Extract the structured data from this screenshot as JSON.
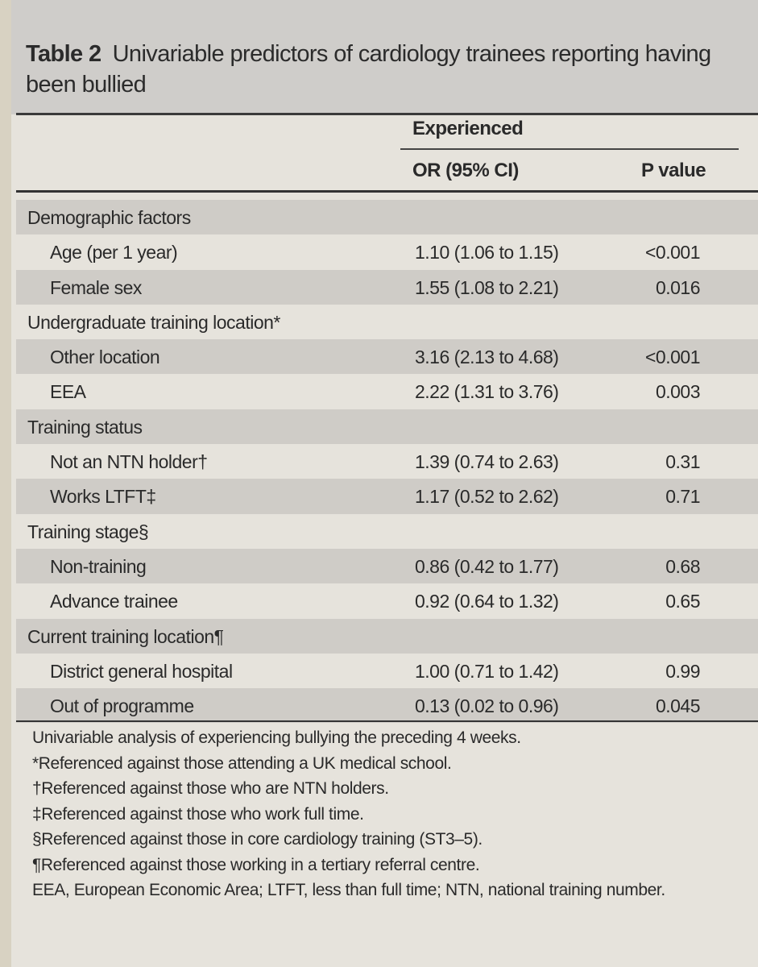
{
  "table": {
    "label": "Table 2",
    "title": "Univariable predictors of cardiology trainees reporting having been bullied",
    "group_header": "Experienced",
    "col_or": "OR (95% CI)",
    "col_p": "P value",
    "rows": [
      {
        "label": "Demographic factors",
        "or": "",
        "p": "",
        "type": "section"
      },
      {
        "label": "Age (per 1 year)",
        "or": "1.10 (1.06 to 1.15)",
        "p": "<0.001",
        "type": "sub"
      },
      {
        "label": "Female sex",
        "or": "1.55 (1.08 to 2.21)",
        "p": "0.016",
        "type": "sub"
      },
      {
        "label": "Undergraduate training location*",
        "or": "",
        "p": "",
        "type": "section"
      },
      {
        "label": "Other location",
        "or": "3.16 (2.13 to 4.68)",
        "p": "<0.001",
        "type": "sub"
      },
      {
        "label": "EEA",
        "or": "2.22 (1.31 to 3.76)",
        "p": "0.003",
        "type": "sub"
      },
      {
        "label": "Training status",
        "or": "",
        "p": "",
        "type": "section"
      },
      {
        "label": "Not an NTN holder†",
        "or": "1.39 (0.74 to 2.63)",
        "p": "0.31",
        "type": "sub"
      },
      {
        "label": "Works LTFT‡",
        "or": "1.17 (0.52 to 2.62)",
        "p": "0.71",
        "type": "sub"
      },
      {
        "label": "Training stage§",
        "or": "",
        "p": "",
        "type": "section"
      },
      {
        "label": "Non-training",
        "or": "0.86 (0.42 to 1.77)",
        "p": "0.68",
        "type": "sub"
      },
      {
        "label": "Advance trainee",
        "or": "0.92 (0.64 to 1.32)",
        "p": "0.65",
        "type": "sub"
      },
      {
        "label": "Current training location¶",
        "or": "",
        "p": "",
        "type": "section"
      },
      {
        "label": "District general hospital",
        "or": "1.00 (0.71 to 1.42)",
        "p": "0.99",
        "type": "sub"
      },
      {
        "label": "Out of programme",
        "or": "0.13 (0.02 to 0.96)",
        "p": "0.045",
        "type": "sub"
      }
    ],
    "footnotes": [
      "Univariable analysis of experiencing bullying the preceding 4 weeks.",
      "*Referenced against those attending a UK medical school.",
      "†Referenced against those who are NTN holders.",
      "‡Referenced against those who work full time.",
      "§Referenced against those in core cardiology training (ST3–5).",
      "¶Referenced against those working in a tertiary referral centre.",
      "EEA, European Economic Area; LTFT, less than full time; NTN, national training number."
    ]
  }
}
